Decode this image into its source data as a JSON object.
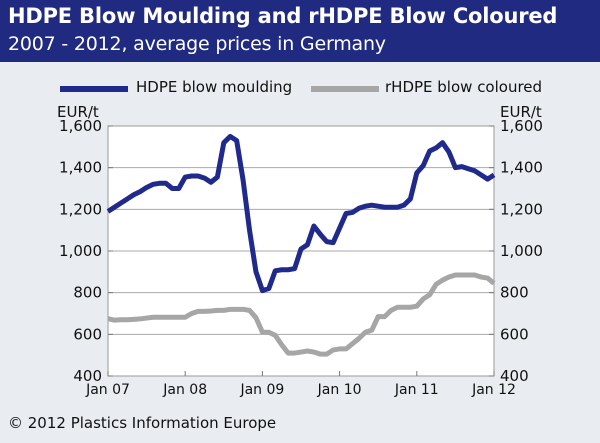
{
  "header": {
    "title": "HDPE Blow Moulding and rHDPE Blow Coloured",
    "subtitle": "2007 - 2012, average prices in Germany"
  },
  "footer": {
    "copyright": "© 2012 Plastics Information Europe"
  },
  "colors": {
    "header_bg": "#1f2a80",
    "hdpe": "#1f2a8c",
    "rhdpe": "#a6a6a6",
    "background": "#e9edf2",
    "plot_bg": "#ffffff"
  },
  "chart_data": {
    "type": "line",
    "ylabel_left": "EUR/t",
    "ylabel_right": "EUR/t",
    "ylim": [
      400,
      1600
    ],
    "yticks": [
      400,
      600,
      800,
      1000,
      1200,
      1400,
      1600
    ],
    "ytick_labels": [
      "400",
      "600",
      "800",
      "1,000",
      "1,200",
      "1,400",
      "1,600"
    ],
    "xlim": [
      "Jan 07",
      "Jan 12"
    ],
    "xticks": [
      "Jan 07",
      "Jan 08",
      "Jan 09",
      "Jan 10",
      "Jan 11",
      "Jan 12"
    ],
    "grid": "horizontal",
    "legend": "top",
    "series": [
      {
        "name": "HDPE blow moulding",
        "color": "#1f2a8c",
        "points": [
          [
            "Jan 07",
            1190
          ],
          [
            "Feb 07",
            1210
          ],
          [
            "Mar 07",
            1230
          ],
          [
            "Apr 07",
            1250
          ],
          [
            "May 07",
            1270
          ],
          [
            "Jun 07",
            1285
          ],
          [
            "Jul 07",
            1305
          ],
          [
            "Aug 07",
            1320
          ],
          [
            "Sep 07",
            1325
          ],
          [
            "Oct 07",
            1325
          ],
          [
            "Nov 07",
            1300
          ],
          [
            "Dec 07",
            1300
          ],
          [
            "Jan 08",
            1355
          ],
          [
            "Feb 08",
            1360
          ],
          [
            "Mar 08",
            1360
          ],
          [
            "Apr 08",
            1350
          ],
          [
            "May 08",
            1330
          ],
          [
            "Jun 08",
            1355
          ],
          [
            "Jul 08",
            1520
          ],
          [
            "Aug 08",
            1550
          ],
          [
            "Sep 08",
            1530
          ],
          [
            "Oct 08",
            1340
          ],
          [
            "Nov 08",
            1100
          ],
          [
            "Dec 08",
            900
          ],
          [
            "Jan 09",
            810
          ],
          [
            "Feb 09",
            820
          ],
          [
            "Mar 09",
            905
          ],
          [
            "Apr 09",
            910
          ],
          [
            "May 09",
            910
          ],
          [
            "Jun 09",
            915
          ],
          [
            "Jul 09",
            1010
          ],
          [
            "Aug 09",
            1030
          ],
          [
            "Sep 09",
            1120
          ],
          [
            "Oct 09",
            1080
          ],
          [
            "Nov 09",
            1045
          ],
          [
            "Dec 09",
            1040
          ],
          [
            "Jan 10",
            1110
          ],
          [
            "Feb 10",
            1180
          ],
          [
            "Mar 10",
            1185
          ],
          [
            "Apr 10",
            1205
          ],
          [
            "May 10",
            1215
          ],
          [
            "Jun 10",
            1220
          ],
          [
            "Jul 10",
            1215
          ],
          [
            "Aug 10",
            1210
          ],
          [
            "Sep 10",
            1210
          ],
          [
            "Oct 10",
            1210
          ],
          [
            "Nov 10",
            1220
          ],
          [
            "Dec 10",
            1250
          ],
          [
            "Jan 11",
            1375
          ],
          [
            "Feb 11",
            1410
          ],
          [
            "Mar 11",
            1480
          ],
          [
            "Apr 11",
            1495
          ],
          [
            "May 11",
            1520
          ],
          [
            "Jun 11",
            1475
          ],
          [
            "Jul 11",
            1400
          ],
          [
            "Aug 11",
            1405
          ],
          [
            "Sep 11",
            1395
          ],
          [
            "Oct 11",
            1385
          ],
          [
            "Nov 11",
            1365
          ],
          [
            "Dec 11",
            1345
          ],
          [
            "Jan 12",
            1365
          ]
        ]
      },
      {
        "name": "rHDPE blow coloured",
        "color": "#a6a6a6",
        "points": [
          [
            "Jan 07",
            675
          ],
          [
            "Feb 07",
            668
          ],
          [
            "Mar 07",
            670
          ],
          [
            "Apr 07",
            670
          ],
          [
            "May 07",
            672
          ],
          [
            "Jun 07",
            674
          ],
          [
            "Jul 07",
            678
          ],
          [
            "Aug 07",
            682
          ],
          [
            "Sep 07",
            682
          ],
          [
            "Oct 07",
            682
          ],
          [
            "Nov 07",
            682
          ],
          [
            "Dec 07",
            682
          ],
          [
            "Jan 08",
            682
          ],
          [
            "Feb 08",
            700
          ],
          [
            "Mar 08",
            710
          ],
          [
            "Apr 08",
            710
          ],
          [
            "May 08",
            712
          ],
          [
            "Jun 08",
            715
          ],
          [
            "Jul 08",
            715
          ],
          [
            "Aug 08",
            720
          ],
          [
            "Sep 08",
            720
          ],
          [
            "Oct 08",
            720
          ],
          [
            "Nov 08",
            715
          ],
          [
            "Dec 08",
            680
          ],
          [
            "Jan 09",
            610
          ],
          [
            "Feb 09",
            610
          ],
          [
            "Mar 09",
            595
          ],
          [
            "Apr 09",
            550
          ],
          [
            "May 09",
            510
          ],
          [
            "Jun 09",
            510
          ],
          [
            "Jul 09",
            515
          ],
          [
            "Aug 09",
            520
          ],
          [
            "Sep 09",
            515
          ],
          [
            "Oct 09",
            505
          ],
          [
            "Nov 09",
            505
          ],
          [
            "Dec 09",
            525
          ],
          [
            "Jan 10",
            530
          ],
          [
            "Feb 10",
            530
          ],
          [
            "Mar 10",
            555
          ],
          [
            "Apr 10",
            580
          ],
          [
            "May 10",
            610
          ],
          [
            "Jun 10",
            620
          ],
          [
            "Jul 10",
            685
          ],
          [
            "Aug 10",
            685
          ],
          [
            "Sep 10",
            715
          ],
          [
            "Oct 10",
            730
          ],
          [
            "Nov 10",
            730
          ],
          [
            "Dec 10",
            730
          ],
          [
            "Jan 11",
            735
          ],
          [
            "Feb 11",
            770
          ],
          [
            "Mar 11",
            790
          ],
          [
            "Apr 11",
            840
          ],
          [
            "May 11",
            860
          ],
          [
            "Jun 11",
            875
          ],
          [
            "Jul 11",
            885
          ],
          [
            "Aug 11",
            885
          ],
          [
            "Sep 11",
            885
          ],
          [
            "Oct 11",
            885
          ],
          [
            "Nov 11",
            875
          ],
          [
            "Dec 11",
            870
          ],
          [
            "Jan 12",
            845
          ]
        ]
      }
    ]
  }
}
